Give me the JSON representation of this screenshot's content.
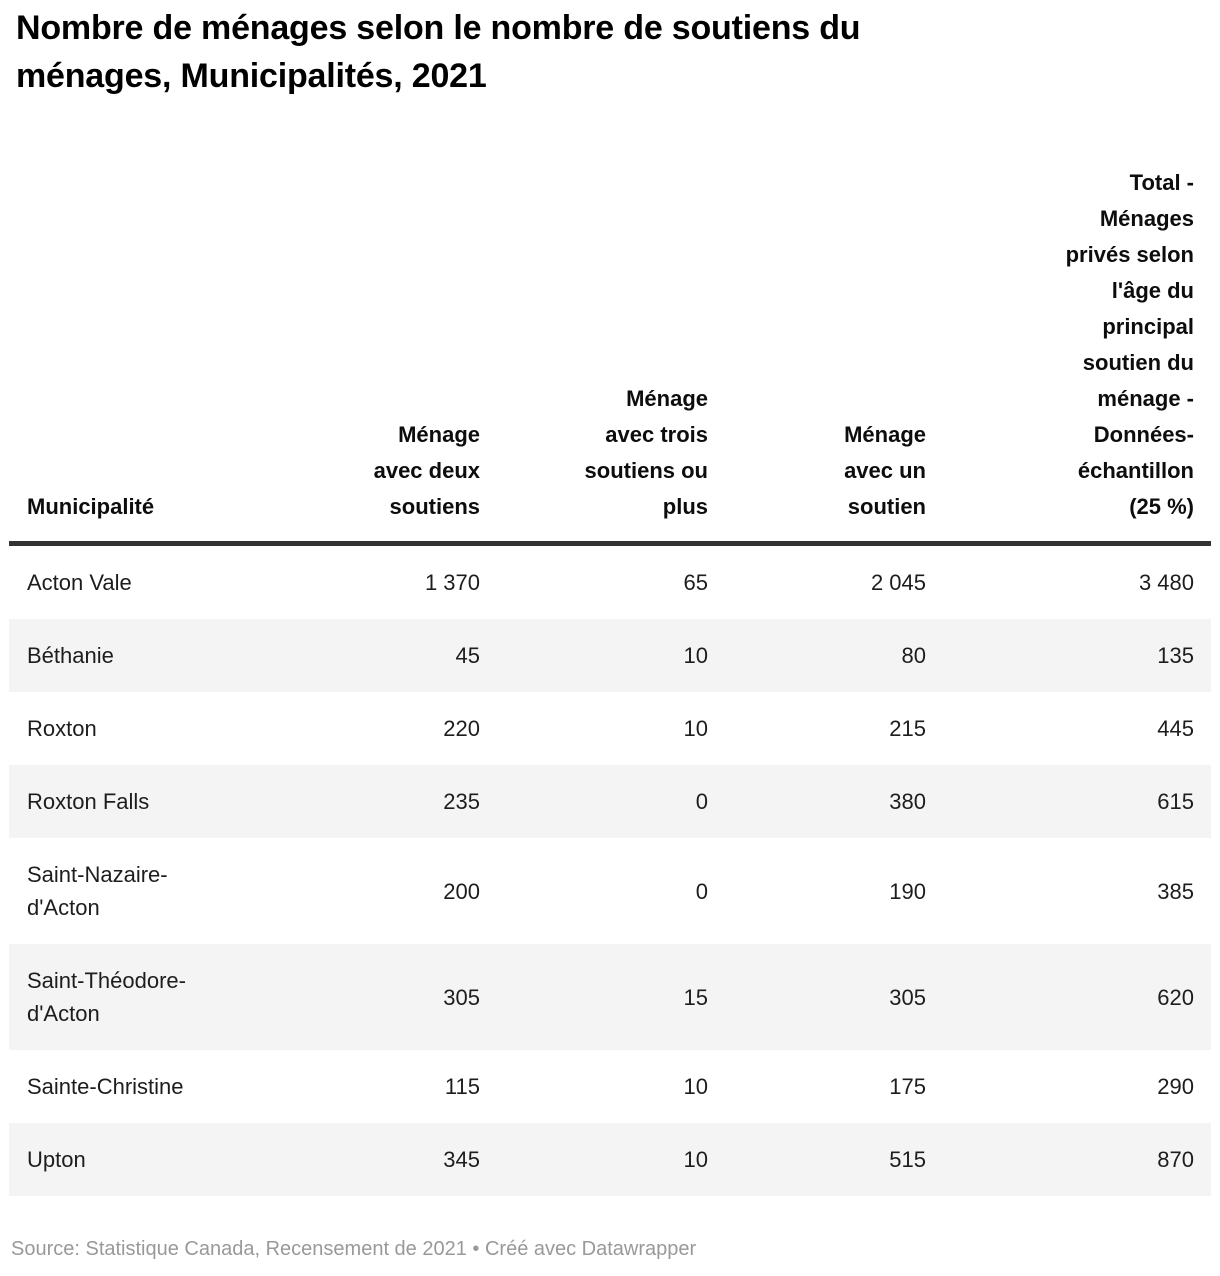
{
  "title": "Nombre de ménages selon le nombre de soutiens du\nménages, Municipalités, 2021",
  "table": {
    "columns": [
      {
        "label": "Municipalité",
        "align": "left"
      },
      {
        "label": "Ménage\navec deux\nsoutiens",
        "align": "right"
      },
      {
        "label": "Ménage\navec trois\nsoutiens ou\nplus",
        "align": "right"
      },
      {
        "label": "Ménage\navec un\nsoutien",
        "align": "right"
      },
      {
        "label": "Total -\nMénages\nprivés selon\nl'âge du\nprincipal\nsoutien du\nménage -\nDonnées-\néchantillon\n(25 %)",
        "align": "right"
      }
    ],
    "rows": [
      {
        "municipality": "Acton Vale",
        "values": [
          "1 370",
          "65",
          "2 045",
          "3 480"
        ]
      },
      {
        "municipality": "Béthanie",
        "values": [
          "45",
          "10",
          "80",
          "135"
        ]
      },
      {
        "municipality": "Roxton",
        "values": [
          "220",
          "10",
          "215",
          "445"
        ]
      },
      {
        "municipality": "Roxton Falls",
        "values": [
          "235",
          "0",
          "380",
          "615"
        ]
      },
      {
        "municipality": "Saint-Nazaire-\nd'Acton",
        "values": [
          "200",
          "0",
          "190",
          "385"
        ]
      },
      {
        "municipality": "Saint-Théodore-\nd'Acton",
        "values": [
          "305",
          "15",
          "305",
          "620"
        ]
      },
      {
        "municipality": "Sainte-Christine",
        "values": [
          "115",
          "10",
          "175",
          "290"
        ]
      },
      {
        "municipality": "Upton",
        "values": [
          "345",
          "10",
          "515",
          "870"
        ]
      }
    ]
  },
  "footer": {
    "text": "Source: Statistique Canada, Recensement de 2021 • Créé avec Datawrapper"
  },
  "colors": {
    "title_text": "#000000",
    "body_text": "#1d1d1d",
    "header_border": "#333333",
    "row_stripe": "#f4f4f4",
    "footer_text": "#999999",
    "background": "#ffffff"
  },
  "chart_data": {
    "type": "table",
    "title": "Nombre de ménages selon le nombre de soutiens du ménages, Municipalités, 2021",
    "row_label": "Municipalité",
    "categories": [
      "Acton Vale",
      "Béthanie",
      "Roxton",
      "Roxton Falls",
      "Saint-Nazaire-d'Acton",
      "Saint-Théodore-d'Acton",
      "Sainte-Christine",
      "Upton"
    ],
    "series": [
      {
        "name": "Ménage avec deux soutiens",
        "values": [
          1370,
          45,
          220,
          235,
          200,
          305,
          115,
          345
        ]
      },
      {
        "name": "Ménage avec trois soutiens ou plus",
        "values": [
          65,
          10,
          10,
          0,
          0,
          15,
          10,
          10
        ]
      },
      {
        "name": "Ménage avec un soutien",
        "values": [
          2045,
          80,
          215,
          380,
          190,
          305,
          175,
          515
        ]
      },
      {
        "name": "Total - Ménages privés selon l'âge du principal soutien du ménage - Données-échantillon (25 %)",
        "values": [
          3480,
          135,
          445,
          615,
          385,
          620,
          290,
          870
        ]
      }
    ],
    "source": "Source: Statistique Canada, Recensement de 2021 • Créé avec Datawrapper",
    "layout_hints": {
      "zebra_stripes": true,
      "numeric_columns_right_aligned": true,
      "header_bottom_aligned": true
    }
  }
}
